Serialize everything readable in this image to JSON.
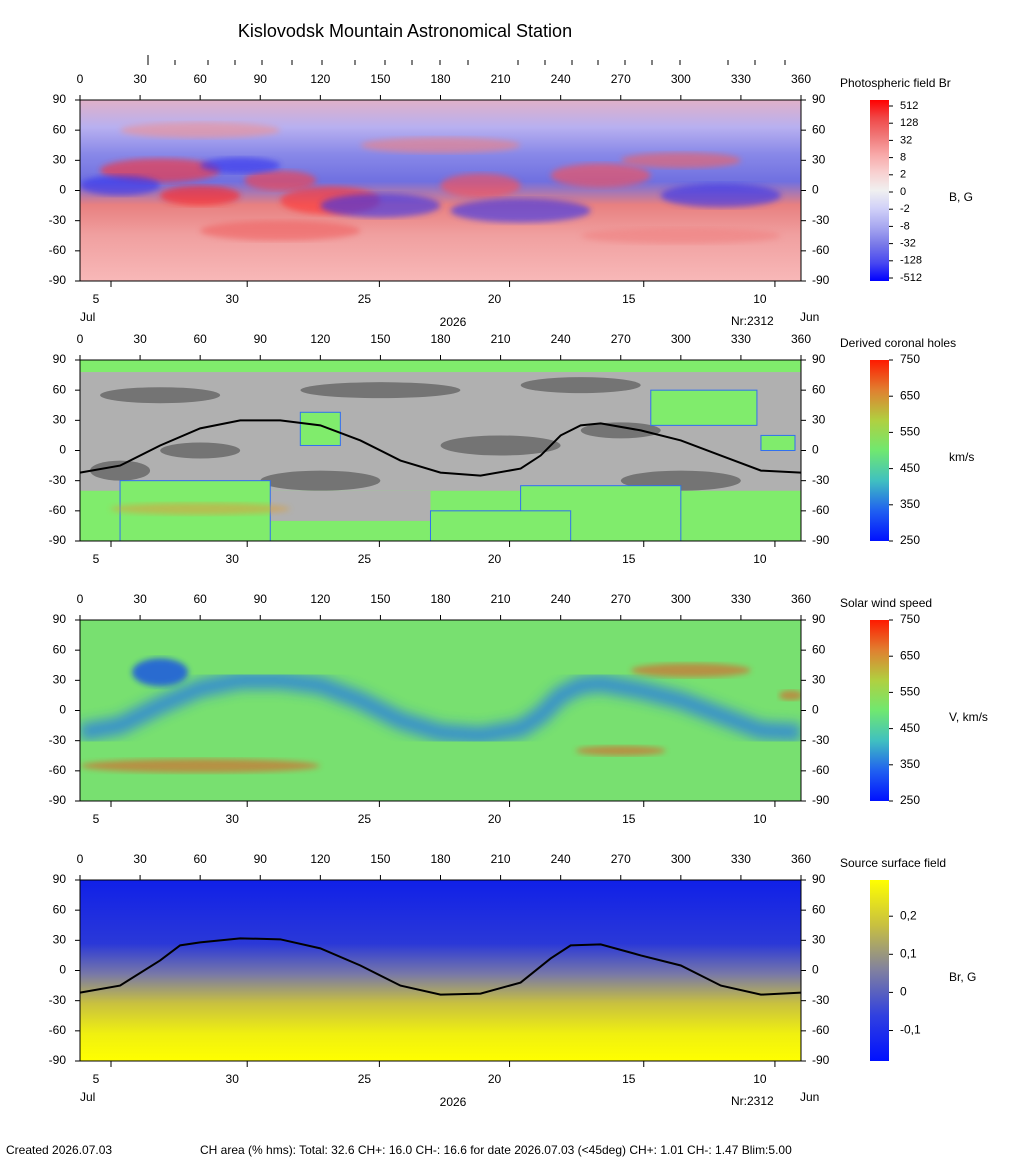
{
  "title": "Kislovodsk Mountain Astronomical Station",
  "footer": {
    "created": "Created  2026.07.03",
    "ch_area": "CH area (% hms): Total: 32.6 CH+: 16.0   CH-: 16.6 for date 2026.07.03 (<45deg) CH+: 1.01    CH-: 1.47 Blim:5.00"
  },
  "chart_data": [
    {
      "type": "heatmap",
      "title": "Photospheric field Br",
      "unit": "B, G",
      "field": "photosphere",
      "xlim": [
        0,
        360
      ],
      "xticks": [
        0,
        30,
        60,
        90,
        120,
        150,
        180,
        210,
        240,
        270,
        300,
        330,
        360
      ],
      "ylim": [
        -90,
        90
      ],
      "yticks": [
        90,
        60,
        30,
        0,
        -30,
        -60,
        -90
      ],
      "date_ticks": [
        {
          "value": 4,
          "label": "5"
        },
        {
          "value": 72,
          "label": "30"
        },
        {
          "value": 138,
          "label": "25"
        },
        {
          "value": 203,
          "label": "20"
        },
        {
          "value": 270,
          "label": "15"
        },
        {
          "value": 335.5,
          "label": "10"
        }
      ],
      "start_month": "Jul",
      "year": "2026",
      "rotation": "Nr:2312",
      "end_month": "Jun",
      "colorbar": {
        "ticks": [
          512,
          128,
          32,
          8,
          2,
          0,
          -2,
          -8,
          -32,
          -128,
          -512
        ],
        "colors": [
          "#ff0000",
          "#f04848",
          "#f07878",
          "#f8a8a8",
          "#f8d0d0",
          "#f0f0f0",
          "#d0d0f8",
          "#a8a8f0",
          "#7878e8",
          "#4848f0",
          "#0000ff"
        ]
      }
    },
    {
      "type": "heatmap",
      "title": "Derived coronal holes",
      "unit": "km/s",
      "field": "holes",
      "xlim": [
        0,
        360
      ],
      "xticks": [
        0,
        30,
        60,
        90,
        120,
        150,
        180,
        210,
        240,
        270,
        300,
        330,
        360
      ],
      "ylim": [
        -90,
        90
      ],
      "yticks": [
        90,
        60,
        30,
        0,
        -30,
        -60,
        -90
      ],
      "date_ticks": [
        {
          "value": 4,
          "label": "5"
        },
        {
          "value": 72,
          "label": "30"
        },
        {
          "value": 138,
          "label": "25"
        },
        {
          "value": 203,
          "label": "20"
        },
        {
          "value": 270,
          "label": "15"
        },
        {
          "value": 335.5,
          "label": "10"
        }
      ],
      "neutral_line": {
        "x": [
          0,
          20,
          40,
          60,
          80,
          100,
          120,
          140,
          160,
          180,
          200,
          220,
          230,
          240,
          250,
          260,
          280,
          300,
          320,
          340,
          360
        ],
        "y": [
          -22,
          -15,
          5,
          22,
          30,
          30,
          25,
          10,
          -10,
          -22,
          -25,
          -18,
          -5,
          15,
          25,
          27,
          20,
          10,
          -5,
          -20,
          -22
        ]
      },
      "colorbar": {
        "clim": [
          250,
          750
        ],
        "ticks": [
          750,
          650,
          550,
          450,
          350,
          250
        ],
        "colors": [
          "#ff1a00",
          "#e08030",
          "#b0d040",
          "#70e870",
          "#40c0c0",
          "#2060f0",
          "#0010ff"
        ]
      }
    },
    {
      "type": "heatmap",
      "title": "Solar wind speed",
      "unit": "V, km/s",
      "field": "wind",
      "xlim": [
        0,
        360
      ],
      "xticks": [
        0,
        30,
        60,
        90,
        120,
        150,
        180,
        210,
        240,
        270,
        300,
        330,
        360
      ],
      "ylim": [
        -90,
        90
      ],
      "yticks": [
        90,
        60,
        30,
        0,
        -30,
        -60,
        -90
      ],
      "date_ticks": [
        {
          "value": 4,
          "label": "5"
        },
        {
          "value": 72,
          "label": "30"
        },
        {
          "value": 138,
          "label": "25"
        },
        {
          "value": 203,
          "label": "20"
        },
        {
          "value": 270,
          "label": "15"
        },
        {
          "value": 335.5,
          "label": "10"
        }
      ],
      "colorbar": {
        "clim": [
          250,
          750
        ],
        "ticks": [
          750,
          650,
          550,
          450,
          350,
          250
        ],
        "colors": [
          "#ff1a00",
          "#e08030",
          "#b0d040",
          "#70e870",
          "#40c0c0",
          "#2060f0",
          "#0010ff"
        ]
      }
    },
    {
      "type": "heatmap",
      "title": "Source surface field",
      "unit": "Br, G",
      "field": "source",
      "xlim": [
        0,
        360
      ],
      "xticks": [
        0,
        30,
        60,
        90,
        120,
        150,
        180,
        210,
        240,
        270,
        300,
        330,
        360
      ],
      "ylim": [
        -90,
        90
      ],
      "yticks": [
        90,
        60,
        30,
        0,
        -30,
        -60,
        -90
      ],
      "date_ticks": [
        {
          "value": 4,
          "label": "5"
        },
        {
          "value": 72,
          "label": "30"
        },
        {
          "value": 138,
          "label": "25"
        },
        {
          "value": 203,
          "label": "20"
        },
        {
          "value": 270,
          "label": "15"
        },
        {
          "value": 335.5,
          "label": "10"
        }
      ],
      "start_month": "Jul",
      "year": "2026",
      "rotation": "Nr:2312",
      "end_month": "Jun",
      "neutral_line": {
        "x": [
          0,
          20,
          40,
          50,
          60,
          80,
          100,
          120,
          140,
          160,
          180,
          200,
          220,
          235,
          245,
          260,
          280,
          300,
          320,
          340,
          360
        ],
        "y": [
          -22,
          -15,
          10,
          25,
          28,
          32,
          31,
          22,
          5,
          -15,
          -24,
          -23,
          -12,
          12,
          25,
          26,
          15,
          5,
          -15,
          -24,
          -22
        ]
      },
      "colorbar": {
        "clim": [
          -0.18,
          0.295
        ],
        "ticks": [
          {
            "value": 0.2,
            "label": "0,2"
          },
          {
            "value": 0.1,
            "label": "0,1"
          },
          0,
          {
            "value": -0.1,
            "label": "-0,1"
          }
        ],
        "colors": [
          "#ffff00",
          "#c8c040",
          "#8080a0",
          "#3040e0",
          "#0010ff"
        ]
      }
    }
  ]
}
